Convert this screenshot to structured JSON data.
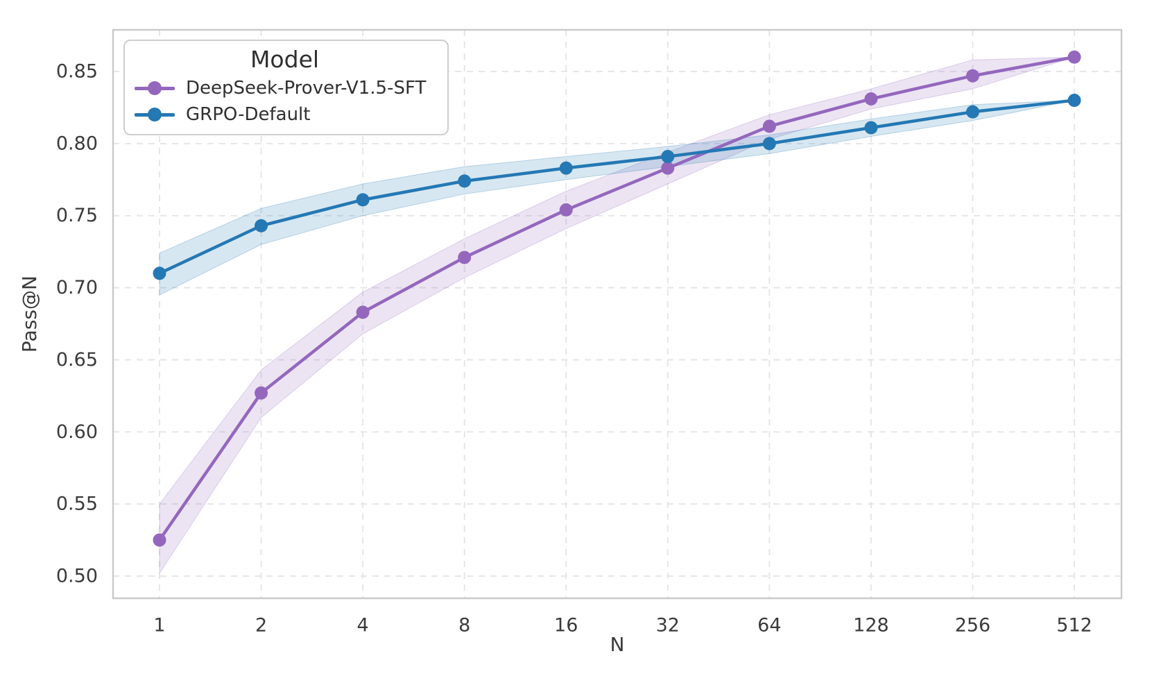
{
  "chart_data": {
    "type": "line",
    "x": [
      1,
      2,
      4,
      8,
      16,
      32,
      64,
      128,
      256,
      512
    ],
    "x_scale": "log2",
    "xlabel": "N",
    "ylabel": "Pass@N",
    "ylim": [
      0.485,
      0.879
    ],
    "yticks": [
      0.5,
      0.55,
      0.6,
      0.65,
      0.7,
      0.75,
      0.8,
      0.85
    ],
    "grid": true,
    "grid_style": "dashed",
    "legend": {
      "title": "Model",
      "position": "upper left"
    },
    "series": [
      {
        "name": "DeepSeek-Prover-V1.5-SFT",
        "color": "#9467bd",
        "band_opacity": 0.18,
        "values": [
          0.525,
          0.627,
          0.683,
          0.721,
          0.754,
          0.783,
          0.812,
          0.831,
          0.847,
          0.86
        ],
        "band_low": [
          0.502,
          0.61,
          0.668,
          0.707,
          0.741,
          0.772,
          0.803,
          0.824,
          0.838,
          0.86
        ],
        "band_high": [
          0.55,
          0.643,
          0.697,
          0.734,
          0.767,
          0.794,
          0.82,
          0.838,
          0.858,
          0.86
        ]
      },
      {
        "name": "GRPO-Default",
        "color": "#2478b4",
        "band_opacity": 0.18,
        "values": [
          0.71,
          0.743,
          0.761,
          0.774,
          0.783,
          0.791,
          0.8,
          0.811,
          0.822,
          0.83
        ],
        "band_low": [
          0.695,
          0.73,
          0.75,
          0.765,
          0.775,
          0.784,
          0.793,
          0.805,
          0.816,
          0.83
        ],
        "band_high": [
          0.724,
          0.755,
          0.772,
          0.784,
          0.791,
          0.798,
          0.806,
          0.817,
          0.827,
          0.83
        ]
      }
    ],
    "colors": {
      "grid": "#e3e3e8",
      "spine": "#cbcbcb",
      "tick_text": "#3a3a3a"
    }
  }
}
